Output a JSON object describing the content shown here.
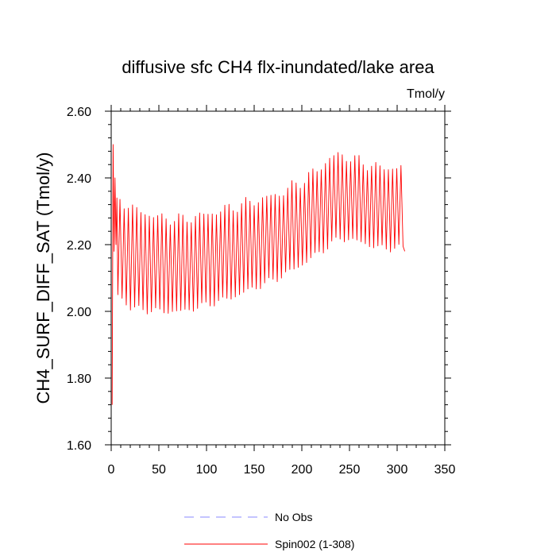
{
  "chart_data": {
    "type": "line",
    "title": "diffusive sfc CH4 flx-inundated/lake area",
    "units_label": "Tmol/y",
    "xlabel": "",
    "ylabel": "CH4_SURF_DIFF_SAT  (Tmol/y)",
    "xlim": [
      0,
      350
    ],
    "ylim": [
      1.6,
      2.6
    ],
    "x_ticks": [
      0,
      50,
      100,
      150,
      200,
      250,
      300,
      350
    ],
    "x_tick_labels": [
      "0",
      "50",
      "100",
      "150",
      "200",
      "250",
      "300",
      "350"
    ],
    "y_ticks": [
      1.6,
      1.8,
      2.0,
      2.2,
      2.4,
      2.6
    ],
    "y_tick_labels": [
      "1.60",
      "1.80",
      "2.00",
      "2.20",
      "2.40",
      "2.60"
    ],
    "grid": false,
    "legend_position": "bottom",
    "series": [
      {
        "name": "No Obs",
        "color": "#8888ff",
        "dash": true,
        "points": []
      },
      {
        "name": "Spin002 (1-308)",
        "color": "#ff0000",
        "dash": false,
        "x_start": 1,
        "x_end": 308,
        "period": 4.4,
        "initial": [
          [
            1,
            1.72
          ],
          [
            2,
            2.5
          ],
          [
            3,
            2.18
          ],
          [
            4,
            2.4
          ],
          [
            5,
            2.2
          ],
          [
            6,
            2.34
          ],
          [
            7,
            2.05
          ]
        ],
        "envelope": [
          {
            "x": 8,
            "max": 2.34,
            "min": 2.05
          },
          {
            "x": 20,
            "max": 2.31,
            "min": 2.01
          },
          {
            "x": 50,
            "max": 2.28,
            "min": 2.0
          },
          {
            "x": 75,
            "max": 2.275,
            "min": 2.0
          },
          {
            "x": 100,
            "max": 2.29,
            "min": 2.02
          },
          {
            "x": 125,
            "max": 2.31,
            "min": 2.04
          },
          {
            "x": 150,
            "max": 2.33,
            "min": 2.07
          },
          {
            "x": 175,
            "max": 2.35,
            "min": 2.1
          },
          {
            "x": 200,
            "max": 2.39,
            "min": 2.14
          },
          {
            "x": 215,
            "max": 2.42,
            "min": 2.17
          },
          {
            "x": 230,
            "max": 2.46,
            "min": 2.2
          },
          {
            "x": 240,
            "max": 2.47,
            "min": 2.22
          },
          {
            "x": 260,
            "max": 2.45,
            "min": 2.21
          },
          {
            "x": 280,
            "max": 2.43,
            "min": 2.19
          },
          {
            "x": 308,
            "max": 2.43,
            "min": 2.19
          }
        ]
      }
    ]
  }
}
